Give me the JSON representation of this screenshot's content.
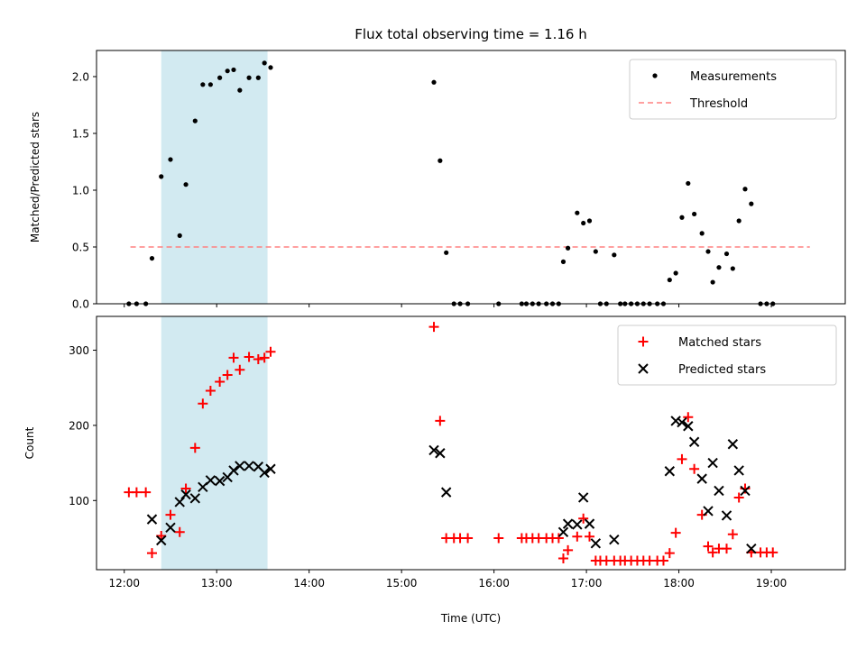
{
  "figure": {
    "title": "Flux total observing time = 1.16 h"
  },
  "chart_data": [
    {
      "type": "scatter",
      "ylabel": "Matched/Predicted stars",
      "xlim": [
        "11:42",
        "19:48"
      ],
      "ylim": [
        0,
        2.23
      ],
      "yticks": [
        "0.0",
        "0.5",
        "1.0",
        "1.5",
        "2.0"
      ],
      "shaded_span": {
        "start": "12:24",
        "end": "13:33",
        "color": "#add8e6"
      },
      "legend": {
        "position": "upper right",
        "entries": [
          "Measurements",
          "Threshold"
        ]
      },
      "threshold": {
        "name": "Threshold",
        "value": 0.5,
        "x_start": "12:04",
        "x_end": "19:25",
        "color": "#ff8080",
        "style": "dashed"
      },
      "series": [
        {
          "name": "Measurements",
          "marker": "dot",
          "color": "#000000",
          "points": [
            [
              "12:03",
              0
            ],
            [
              "12:08",
              0
            ],
            [
              "12:14",
              0
            ],
            [
              "12:18",
              0.4
            ],
            [
              "12:24",
              1.12
            ],
            [
              "12:30",
              1.27
            ],
            [
              "12:36",
              0.6
            ],
            [
              "12:40",
              1.05
            ],
            [
              "12:46",
              1.61
            ],
            [
              "12:51",
              1.93
            ],
            [
              "12:56",
              1.93
            ],
            [
              "13:02",
              1.99
            ],
            [
              "13:07",
              2.05
            ],
            [
              "13:11",
              2.06
            ],
            [
              "13:15",
              1.88
            ],
            [
              "13:21",
              1.99
            ],
            [
              "13:27",
              1.99
            ],
            [
              "13:31",
              2.12
            ],
            [
              "13:35",
              2.08
            ],
            [
              "15:21",
              1.95
            ],
            [
              "15:25",
              1.26
            ],
            [
              "15:29",
              0.45
            ],
            [
              "15:34",
              0
            ],
            [
              "15:38",
              0
            ],
            [
              "15:43",
              0
            ],
            [
              "16:03",
              0
            ],
            [
              "16:18",
              0
            ],
            [
              "16:21",
              0
            ],
            [
              "16:25",
              0
            ],
            [
              "16:29",
              0
            ],
            [
              "16:34",
              0
            ],
            [
              "16:38",
              0
            ],
            [
              "16:42",
              0
            ],
            [
              "16:45",
              0.37
            ],
            [
              "16:48",
              0.49
            ],
            [
              "16:54",
              0.8
            ],
            [
              "16:58",
              0.71
            ],
            [
              "17:02",
              0.73
            ],
            [
              "17:06",
              0.46
            ],
            [
              "17:09",
              0
            ],
            [
              "17:13",
              0
            ],
            [
              "17:18",
              0.43
            ],
            [
              "17:22",
              0
            ],
            [
              "17:25",
              0
            ],
            [
              "17:29",
              0
            ],
            [
              "17:33",
              0
            ],
            [
              "17:37",
              0
            ],
            [
              "17:41",
              0
            ],
            [
              "17:46",
              0
            ],
            [
              "17:50",
              0
            ],
            [
              "17:54",
              0.21
            ],
            [
              "17:58",
              0.27
            ],
            [
              "18:02",
              0.76
            ],
            [
              "18:06",
              1.06
            ],
            [
              "18:10",
              0.79
            ],
            [
              "18:15",
              0.62
            ],
            [
              "18:19",
              0.46
            ],
            [
              "18:22",
              0.19
            ],
            [
              "18:26",
              0.32
            ],
            [
              "18:31",
              0.44
            ],
            [
              "18:35",
              0.31
            ],
            [
              "18:39",
              0.73
            ],
            [
              "18:43",
              1.01
            ],
            [
              "18:47",
              0.88
            ],
            [
              "18:53",
              0
            ],
            [
              "18:57",
              0
            ],
            [
              "19:01",
              0
            ]
          ]
        }
      ]
    },
    {
      "type": "scatter",
      "xlabel": "Time (UTC)",
      "ylabel": "Count",
      "xlim": [
        "11:42",
        "19:48"
      ],
      "ylim": [
        8,
        345
      ],
      "xticks": [
        "12:00",
        "13:00",
        "14:00",
        "15:00",
        "16:00",
        "17:00",
        "18:00",
        "19:00"
      ],
      "yticks": [
        "100",
        "200",
        "300"
      ],
      "shaded_span": {
        "start": "12:24",
        "end": "13:33",
        "color": "#add8e6"
      },
      "legend": {
        "position": "upper right",
        "entries": [
          "Matched stars",
          "Predicted stars"
        ]
      },
      "series": [
        {
          "name": "Matched stars",
          "marker": "plus",
          "color": "#ff0000",
          "points": [
            [
              "12:03",
              111
            ],
            [
              "12:08",
              111
            ],
            [
              "12:14",
              111
            ],
            [
              "12:18",
              30
            ],
            [
              "12:24",
              53
            ],
            [
              "12:30",
              81
            ],
            [
              "12:36",
              58
            ],
            [
              "12:40",
              116
            ],
            [
              "12:46",
              170
            ],
            [
              "12:51",
              229
            ],
            [
              "12:56",
              246
            ],
            [
              "13:02",
              258
            ],
            [
              "13:07",
              267
            ],
            [
              "13:11",
              290
            ],
            [
              "13:15",
              274
            ],
            [
              "13:21",
              291
            ],
            [
              "13:27",
              288
            ],
            [
              "13:31",
              290
            ],
            [
              "13:35",
              298
            ],
            [
              "15:21",
              331
            ],
            [
              "15:25",
              206
            ],
            [
              "15:29",
              50
            ],
            [
              "15:34",
              50
            ],
            [
              "15:38",
              50
            ],
            [
              "15:43",
              50
            ],
            [
              "16:03",
              50
            ],
            [
              "16:18",
              50
            ],
            [
              "16:21",
              50
            ],
            [
              "16:25",
              50
            ],
            [
              "16:29",
              50
            ],
            [
              "16:34",
              50
            ],
            [
              "16:38",
              50
            ],
            [
              "16:42",
              50
            ],
            [
              "16:45",
              23
            ],
            [
              "16:48",
              34
            ],
            [
              "16:54",
              52
            ],
            [
              "16:58",
              76
            ],
            [
              "17:02",
              52
            ],
            [
              "17:06",
              20
            ],
            [
              "17:09",
              20
            ],
            [
              "17:13",
              20
            ],
            [
              "17:18",
              20
            ],
            [
              "17:22",
              20
            ],
            [
              "17:25",
              20
            ],
            [
              "17:29",
              20
            ],
            [
              "17:33",
              20
            ],
            [
              "17:37",
              20
            ],
            [
              "17:41",
              20
            ],
            [
              "17:46",
              20
            ],
            [
              "17:50",
              20
            ],
            [
              "17:54",
              30
            ],
            [
              "17:58",
              57
            ],
            [
              "18:02",
              155
            ],
            [
              "18:06",
              211
            ],
            [
              "18:10",
              142
            ],
            [
              "18:15",
              81
            ],
            [
              "18:19",
              39
            ],
            [
              "18:22",
              31
            ],
            [
              "18:26",
              36
            ],
            [
              "18:31",
              36
            ],
            [
              "18:35",
              55
            ],
            [
              "18:39",
              104
            ],
            [
              "18:43",
              116
            ],
            [
              "18:47",
              31
            ],
            [
              "18:53",
              31
            ],
            [
              "18:57",
              31
            ],
            [
              "19:01",
              31
            ]
          ]
        },
        {
          "name": "Predicted stars",
          "marker": "x",
          "color": "#000000",
          "points": [
            [
              "12:18",
              75
            ],
            [
              "12:24",
              47
            ],
            [
              "12:30",
              64
            ],
            [
              "12:36",
              98
            ],
            [
              "12:40",
              108
            ],
            [
              "12:46",
              103
            ],
            [
              "12:51",
              118
            ],
            [
              "12:56",
              127
            ],
            [
              "13:02",
              126
            ],
            [
              "13:07",
              131
            ],
            [
              "13:11",
              140
            ],
            [
              "13:15",
              146
            ],
            [
              "13:21",
              146
            ],
            [
              "13:27",
              145
            ],
            [
              "13:31",
              137
            ],
            [
              "13:35",
              142
            ],
            [
              "15:21",
              167
            ],
            [
              "15:25",
              163
            ],
            [
              "15:29",
              111
            ],
            [
              "16:45",
              58
            ],
            [
              "16:48",
              69
            ],
            [
              "16:54",
              68
            ],
            [
              "16:58",
              104
            ],
            [
              "17:02",
              69
            ],
            [
              "17:06",
              43
            ],
            [
              "17:18",
              48
            ],
            [
              "17:54",
              139
            ],
            [
              "17:58",
              206
            ],
            [
              "18:02",
              204
            ],
            [
              "18:06",
              199
            ],
            [
              "18:10",
              178
            ],
            [
              "18:15",
              129
            ],
            [
              "18:19",
              86
            ],
            [
              "18:22",
              150
            ],
            [
              "18:26",
              113
            ],
            [
              "18:31",
              80
            ],
            [
              "18:35",
              175
            ],
            [
              "18:39",
              140
            ],
            [
              "18:43",
              113
            ],
            [
              "18:47",
              36
            ]
          ]
        }
      ]
    }
  ]
}
